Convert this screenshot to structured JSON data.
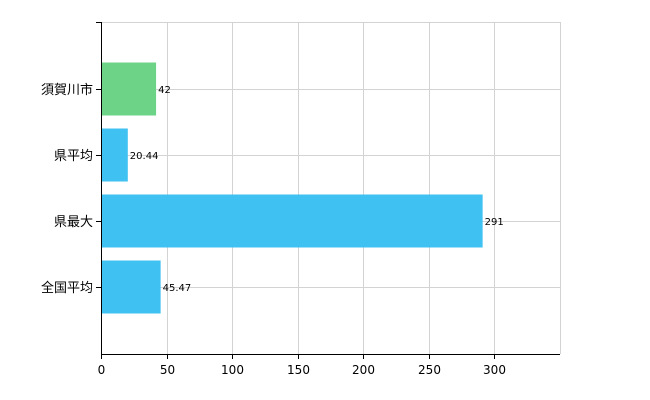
{
  "chart_data": {
    "type": "bar",
    "orientation": "horizontal",
    "categories": [
      "須賀川市",
      "県平均",
      "県最大",
      "全国平均"
    ],
    "values": [
      42,
      20.44,
      291,
      45.47
    ],
    "value_labels": [
      "42",
      "20.44",
      "291",
      "45.47"
    ],
    "bar_colors": [
      "#6dd387",
      "#3fc1f2",
      "#3fc1f2",
      "#3fc1f2"
    ],
    "xlim": [
      0,
      350
    ],
    "xticks": [
      0,
      50,
      100,
      150,
      200,
      250,
      300
    ],
    "xtick_labels": [
      "0",
      "50",
      "100",
      "150",
      "200",
      "250",
      "300"
    ],
    "grid": true,
    "legend": "none"
  }
}
